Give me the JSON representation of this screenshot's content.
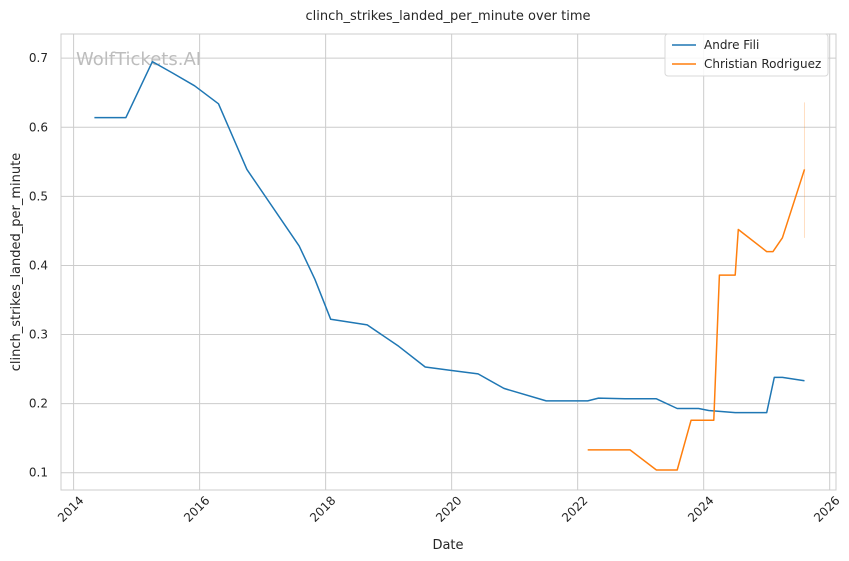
{
  "chart_data": {
    "type": "line",
    "title": "clinch_strikes_landed_per_minute over time",
    "xlabel": "Date",
    "ylabel": "clinch_strikes_landed_per_minute",
    "watermark": "WolfTickets.AI",
    "xlim": [
      2013.8,
      2026.1
    ],
    "ylim": [
      0.075,
      0.735
    ],
    "x_ticks": [
      2014,
      2016,
      2018,
      2020,
      2022,
      2024,
      2026
    ],
    "x_tick_labels": [
      "2014",
      "2016",
      "2018",
      "2020",
      "2022",
      "2024",
      "2026"
    ],
    "y_ticks": [
      0.1,
      0.2,
      0.3,
      0.4,
      0.5,
      0.6,
      0.7
    ],
    "y_tick_labels": [
      "0.1",
      "0.2",
      "0.3",
      "0.4",
      "0.5",
      "0.6",
      "0.7"
    ],
    "grid": true,
    "legend_position": "top-right",
    "series": [
      {
        "name": "Andre Fili",
        "color": "#1f77b4",
        "points": [
          [
            2014.33,
            0.614
          ],
          [
            2014.83,
            0.614
          ],
          [
            2015.25,
            0.695
          ],
          [
            2015.58,
            0.678
          ],
          [
            2015.92,
            0.66
          ],
          [
            2016.3,
            0.634
          ],
          [
            2016.75,
            0.539
          ],
          [
            2017.58,
            0.428
          ],
          [
            2017.83,
            0.38
          ],
          [
            2018.08,
            0.322
          ],
          [
            2018.66,
            0.314
          ],
          [
            2019.16,
            0.283
          ],
          [
            2019.58,
            0.253
          ],
          [
            2020.0,
            0.248
          ],
          [
            2020.42,
            0.243
          ],
          [
            2020.83,
            0.222
          ],
          [
            2021.5,
            0.204
          ],
          [
            2022.16,
            0.204
          ],
          [
            2022.33,
            0.208
          ],
          [
            2022.75,
            0.207
          ],
          [
            2023.25,
            0.207
          ],
          [
            2023.58,
            0.193
          ],
          [
            2023.92,
            0.193
          ],
          [
            2024.08,
            0.19
          ],
          [
            2024.5,
            0.187
          ],
          [
            2025.0,
            0.187
          ],
          [
            2025.12,
            0.238
          ],
          [
            2025.25,
            0.238
          ],
          [
            2025.6,
            0.233
          ]
        ]
      },
      {
        "name": "Christian Rodriguez",
        "color": "#ff7f0e",
        "points": [
          [
            2022.16,
            0.133
          ],
          [
            2022.83,
            0.133
          ],
          [
            2023.25,
            0.104
          ],
          [
            2023.58,
            0.104
          ],
          [
            2023.8,
            0.176
          ],
          [
            2024.16,
            0.176
          ],
          [
            2024.25,
            0.386
          ],
          [
            2024.5,
            0.386
          ],
          [
            2024.55,
            0.452
          ],
          [
            2025.0,
            0.42
          ],
          [
            2025.1,
            0.42
          ],
          [
            2025.25,
            0.44
          ],
          [
            2025.6,
            0.539
          ]
        ],
        "error_band": {
          "x": 2025.6,
          "low": 0.44,
          "high": 0.636
        }
      }
    ]
  }
}
